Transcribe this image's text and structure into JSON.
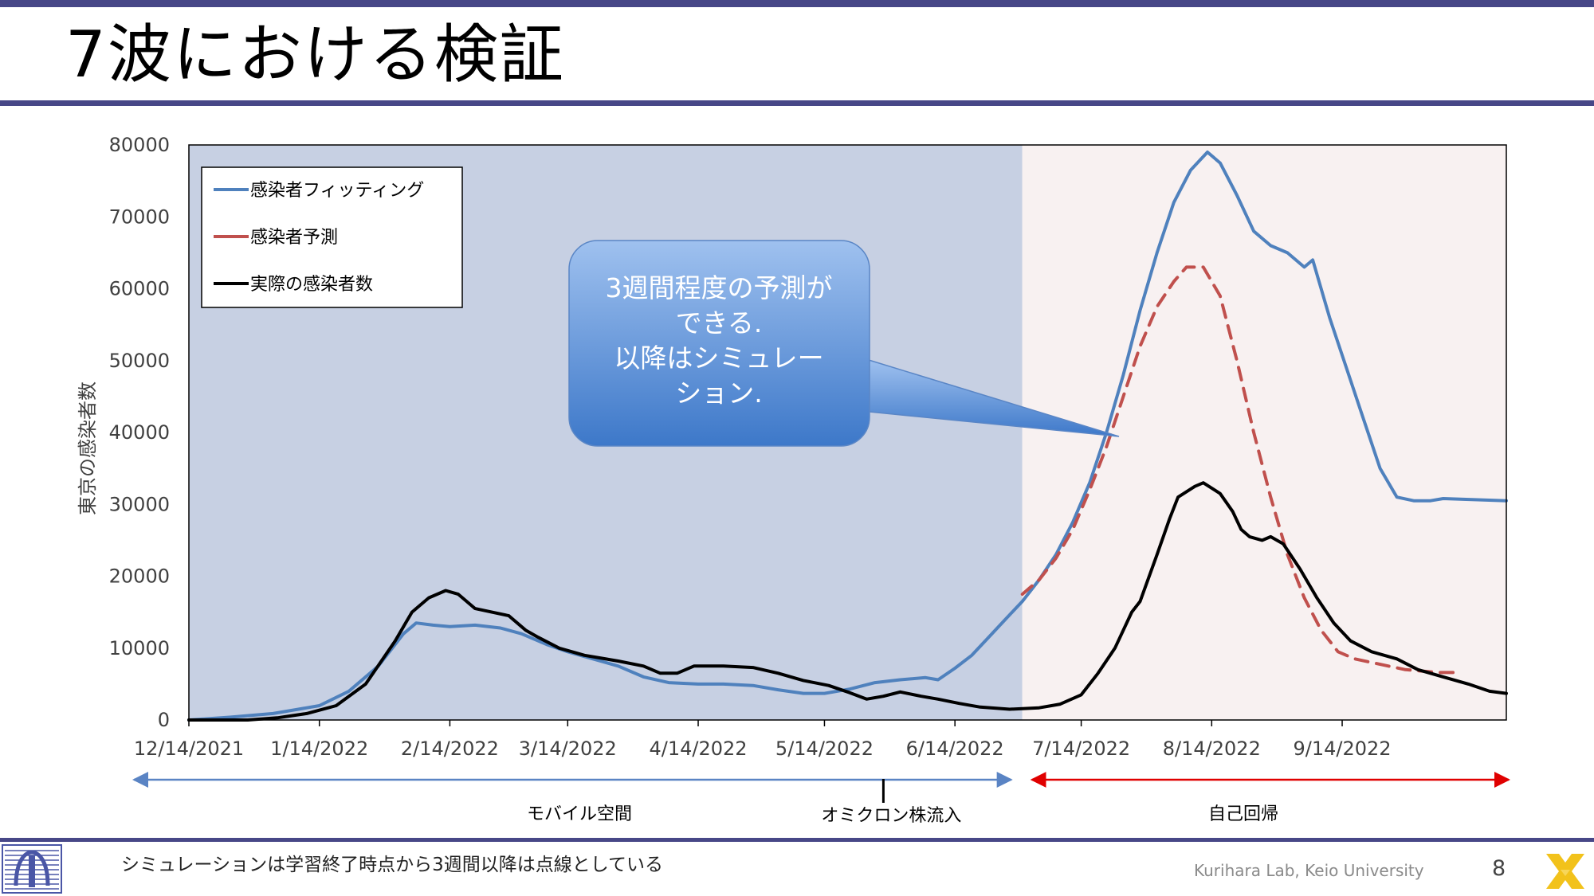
{
  "slide": {
    "title": "7波における検証",
    "footnote": "シミュレーションは学習終了時点から3週間以降は点線としている",
    "lab": "Kurihara Lab, Keio University",
    "page": "8",
    "bar_color": "#474787"
  },
  "callout": {
    "lines": [
      "3週間程度の予測が",
      "できる.",
      "以降はシミュレー",
      "ション."
    ]
  },
  "periods": {
    "mobile": "モバイル空間",
    "omicron": "オミクロン株流入",
    "ar": "自己回帰"
  },
  "chart_data": {
    "type": "line",
    "title": "",
    "xlabel": "",
    "ylabel": "東京の感染者数",
    "ylim": [
      0,
      80000
    ],
    "y_ticks": [
      0,
      10000,
      20000,
      30000,
      40000,
      50000,
      60000,
      70000,
      80000
    ],
    "x_range": [
      "2021-12-14",
      "2022-10-23"
    ],
    "x_ticks": [
      {
        "date": "2021-12-14",
        "label": "12/14/2021"
      },
      {
        "date": "2022-01-14",
        "label": "1/14/2022"
      },
      {
        "date": "2022-02-14",
        "label": "2/14/2022"
      },
      {
        "date": "2022-03-14",
        "label": "3/14/2022"
      },
      {
        "date": "2022-04-14",
        "label": "4/14/2022"
      },
      {
        "date": "2022-05-14",
        "label": "5/14/2022"
      },
      {
        "date": "2022-06-14",
        "label": "6/14/2022"
      },
      {
        "date": "2022-07-14",
        "label": "7/14/2022"
      },
      {
        "date": "2022-08-14",
        "label": "8/14/2022"
      },
      {
        "date": "2022-09-14",
        "label": "9/14/2022"
      }
    ],
    "grid": false,
    "legend": "top-left",
    "regions": [
      {
        "start": "2021-12-14",
        "end": "2022-06-30",
        "color": "#c7d0e3",
        "period": "mobile"
      },
      {
        "start": "2022-06-30",
        "end": "2022-10-23",
        "color": "#f8f1f1",
        "period": "ar"
      }
    ],
    "omicron_date": "2022-05-28",
    "series": [
      {
        "name": "感染者フィッティング",
        "color": "#4f81bd",
        "style": "solid",
        "points": [
          [
            "2021-12-14",
            0
          ],
          [
            "2021-12-24",
            400
          ],
          [
            "2022-01-03",
            900
          ],
          [
            "2022-01-14",
            2000
          ],
          [
            "2022-01-21",
            4000
          ],
          [
            "2022-01-28",
            7500
          ],
          [
            "2022-02-03",
            12000
          ],
          [
            "2022-02-06",
            13500
          ],
          [
            "2022-02-10",
            13200
          ],
          [
            "2022-02-14",
            13000
          ],
          [
            "2022-02-20",
            13200
          ],
          [
            "2022-02-26",
            12800
          ],
          [
            "2022-03-03",
            12000
          ],
          [
            "2022-03-09",
            10500
          ],
          [
            "2022-03-14",
            9500
          ],
          [
            "2022-03-20",
            8500
          ],
          [
            "2022-03-26",
            7500
          ],
          [
            "2022-04-01",
            6000
          ],
          [
            "2022-04-07",
            5200
          ],
          [
            "2022-04-14",
            5000
          ],
          [
            "2022-04-20",
            5000
          ],
          [
            "2022-04-27",
            4800
          ],
          [
            "2022-05-03",
            4200
          ],
          [
            "2022-05-09",
            3700
          ],
          [
            "2022-05-14",
            3700
          ],
          [
            "2022-05-20",
            4300
          ],
          [
            "2022-05-26",
            5200
          ],
          [
            "2022-06-01",
            5600
          ],
          [
            "2022-06-07",
            5900
          ],
          [
            "2022-06-10",
            5600
          ],
          [
            "2022-06-14",
            7200
          ],
          [
            "2022-06-18",
            9000
          ],
          [
            "2022-06-22",
            11500
          ],
          [
            "2022-06-26",
            14000
          ],
          [
            "2022-06-30",
            16500
          ],
          [
            "2022-07-04",
            19500
          ],
          [
            "2022-07-08",
            23000
          ],
          [
            "2022-07-12",
            27500
          ],
          [
            "2022-07-16",
            33000
          ],
          [
            "2022-07-20",
            40000
          ],
          [
            "2022-07-24",
            48000
          ],
          [
            "2022-07-28",
            57000
          ],
          [
            "2022-08-01",
            65000
          ],
          [
            "2022-08-05",
            72000
          ],
          [
            "2022-08-09",
            76500
          ],
          [
            "2022-08-13",
            79000
          ],
          [
            "2022-08-16",
            77500
          ],
          [
            "2022-08-20",
            73000
          ],
          [
            "2022-08-24",
            68000
          ],
          [
            "2022-08-28",
            66000
          ],
          [
            "2022-09-01",
            65000
          ],
          [
            "2022-09-05",
            63000
          ],
          [
            "2022-09-07",
            64000
          ],
          [
            "2022-09-11",
            56000
          ],
          [
            "2022-09-15",
            49000
          ],
          [
            "2022-09-19",
            42000
          ],
          [
            "2022-09-23",
            35000
          ],
          [
            "2022-09-27",
            31000
          ],
          [
            "2022-10-01",
            30500
          ],
          [
            "2022-10-05",
            30500
          ],
          [
            "2022-10-08",
            30800
          ],
          [
            "2022-10-23",
            30500
          ]
        ]
      },
      {
        "name": "感染者予測",
        "color": "#c0504d",
        "style": "dashed",
        "points": [
          [
            "2022-06-30",
            17500
          ],
          [
            "2022-07-04",
            19500
          ],
          [
            "2022-07-08",
            22500
          ],
          [
            "2022-07-12",
            26500
          ],
          [
            "2022-07-16",
            32000
          ],
          [
            "2022-07-20",
            38000
          ],
          [
            "2022-07-24",
            45000
          ],
          [
            "2022-07-28",
            52000
          ],
          [
            "2022-08-01",
            57500
          ],
          [
            "2022-08-05",
            61000
          ],
          [
            "2022-08-08",
            63000
          ],
          [
            "2022-08-12",
            63000
          ],
          [
            "2022-08-16",
            59000
          ],
          [
            "2022-08-20",
            50000
          ],
          [
            "2022-08-24",
            40000
          ],
          [
            "2022-08-28",
            31000
          ],
          [
            "2022-09-01",
            23000
          ],
          [
            "2022-09-05",
            17000
          ],
          [
            "2022-09-09",
            12500
          ],
          [
            "2022-09-13",
            9500
          ],
          [
            "2022-09-17",
            8500
          ],
          [
            "2022-09-21",
            8000
          ],
          [
            "2022-09-25",
            7500
          ],
          [
            "2022-09-29",
            7000
          ],
          [
            "2022-10-03",
            6800
          ],
          [
            "2022-10-07",
            6600
          ],
          [
            "2022-10-12",
            6600
          ]
        ]
      },
      {
        "name": "実際の感染者数",
        "color": "#000000",
        "style": "solid",
        "points": [
          [
            "2021-12-14",
            0
          ],
          [
            "2021-12-28",
            0
          ],
          [
            "2022-01-04",
            300
          ],
          [
            "2022-01-11",
            900
          ],
          [
            "2022-01-18",
            2000
          ],
          [
            "2022-01-25",
            5000
          ],
          [
            "2022-02-01",
            11000
          ],
          [
            "2022-02-05",
            15000
          ],
          [
            "2022-02-09",
            17000
          ],
          [
            "2022-02-13",
            18000
          ],
          [
            "2022-02-16",
            17500
          ],
          [
            "2022-02-20",
            15500
          ],
          [
            "2022-02-24",
            15000
          ],
          [
            "2022-02-28",
            14500
          ],
          [
            "2022-03-04",
            12500
          ],
          [
            "2022-03-07",
            11500
          ],
          [
            "2022-03-12",
            10000
          ],
          [
            "2022-03-18",
            9000
          ],
          [
            "2022-03-26",
            8200
          ],
          [
            "2022-04-01",
            7500
          ],
          [
            "2022-04-05",
            6500
          ],
          [
            "2022-04-09",
            6500
          ],
          [
            "2022-04-13",
            7500
          ],
          [
            "2022-04-20",
            7500
          ],
          [
            "2022-04-27",
            7300
          ],
          [
            "2022-05-03",
            6500
          ],
          [
            "2022-05-09",
            5500
          ],
          [
            "2022-05-15",
            4800
          ],
          [
            "2022-05-20",
            3800
          ],
          [
            "2022-05-24",
            2900
          ],
          [
            "2022-05-28",
            3300
          ],
          [
            "2022-06-01",
            3900
          ],
          [
            "2022-06-06",
            3300
          ],
          [
            "2022-06-10",
            2900
          ],
          [
            "2022-06-15",
            2300
          ],
          [
            "2022-06-20",
            1800
          ],
          [
            "2022-06-27",
            1500
          ],
          [
            "2022-07-04",
            1700
          ],
          [
            "2022-07-09",
            2200
          ],
          [
            "2022-07-14",
            3500
          ],
          [
            "2022-07-18",
            6500
          ],
          [
            "2022-07-22",
            10000
          ],
          [
            "2022-07-26",
            15000
          ],
          [
            "2022-07-28",
            16500
          ],
          [
            "2022-08-01",
            23000
          ],
          [
            "2022-08-04",
            28000
          ],
          [
            "2022-08-06",
            31000
          ],
          [
            "2022-08-10",
            32500
          ],
          [
            "2022-08-12",
            33000
          ],
          [
            "2022-08-16",
            31500
          ],
          [
            "2022-08-19",
            29000
          ],
          [
            "2022-08-21",
            26500
          ],
          [
            "2022-08-23",
            25500
          ],
          [
            "2022-08-26",
            25000
          ],
          [
            "2022-08-28",
            25500
          ],
          [
            "2022-08-31",
            24500
          ],
          [
            "2022-09-04",
            21000
          ],
          [
            "2022-09-08",
            17000
          ],
          [
            "2022-09-12",
            13500
          ],
          [
            "2022-09-16",
            11000
          ],
          [
            "2022-09-21",
            9500
          ],
          [
            "2022-09-27",
            8500
          ],
          [
            "2022-10-02",
            7000
          ],
          [
            "2022-10-08",
            6000
          ],
          [
            "2022-10-14",
            5000
          ],
          [
            "2022-10-19",
            4000
          ],
          [
            "2022-10-23",
            3700
          ]
        ]
      }
    ]
  }
}
